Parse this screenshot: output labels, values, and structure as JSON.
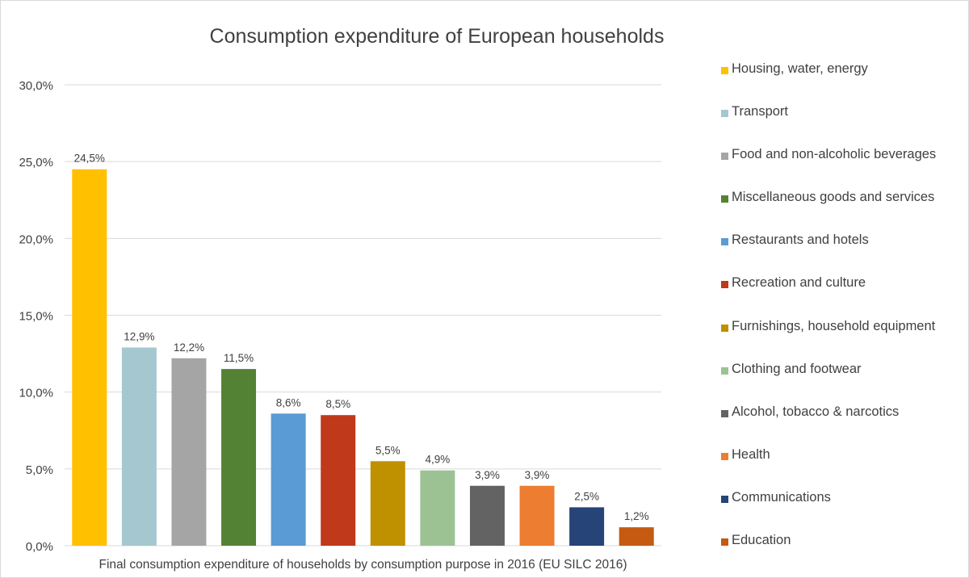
{
  "chart_data": {
    "type": "bar",
    "title": "Consumption expenditure of European households",
    "xlabel": "Final consumption expenditure of households by consumption purpose in 2016 (EU SILC 2016)",
    "ylabel": "",
    "ylim": [
      0,
      30
    ],
    "y_ticks": [
      "0,0%",
      "5,0%",
      "10,0%",
      "15,0%",
      "20,0%",
      "25,0%",
      "30,0%"
    ],
    "y_tick_values": [
      0,
      5,
      10,
      15,
      20,
      25,
      30
    ],
    "grid": true,
    "legend_position": "right",
    "categories": [
      "Housing, water, energy",
      "Transport",
      "Food and non-alcoholic beverages",
      "Miscellaneous goods and services",
      "Restaurants and hotels",
      "Recreation and culture",
      "Furnishings, household equipment",
      "Clothing and footwear",
      "Alcohol, tobacco & narcotics",
      "Health",
      "Communications",
      "Education"
    ],
    "values": [
      24.5,
      12.9,
      12.2,
      11.5,
      8.6,
      8.5,
      5.5,
      4.9,
      3.9,
      3.9,
      2.5,
      1.2
    ],
    "data_labels": [
      "24,5%",
      "12,9%",
      "12,2%",
      "11,5%",
      "8,6%",
      "8,5%",
      "5,5%",
      "4,9%",
      "3,9%",
      "3,9%",
      "2,5%",
      "1,2%"
    ],
    "colors": [
      "#ffc000",
      "#a5c8d0",
      "#a5a5a5",
      "#548235",
      "#5b9bd5",
      "#c0391b",
      "#bf9000",
      "#9cc294",
      "#636363",
      "#ed7d31",
      "#264478",
      "#c55a11"
    ]
  }
}
